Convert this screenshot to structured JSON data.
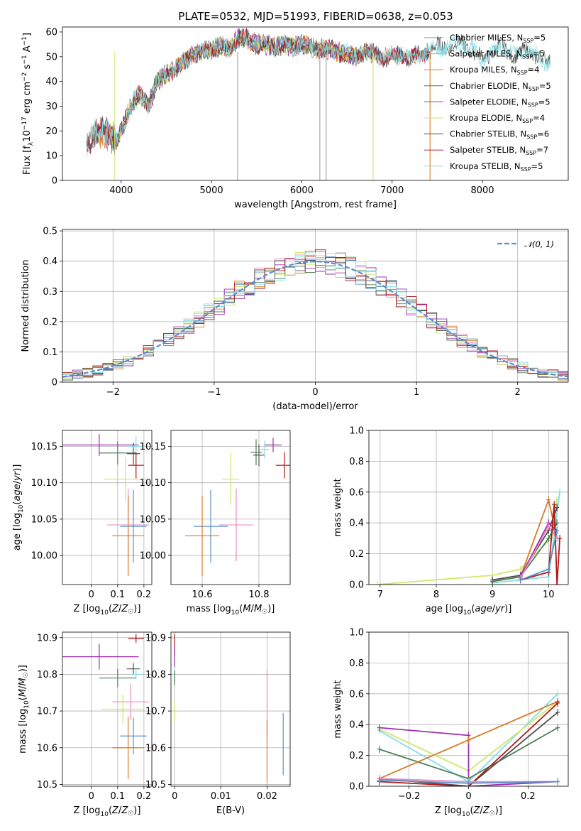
{
  "figure_title": "PLATE=0532, MJD=51993, FIBERID=0638, z=0.053",
  "colors": {
    "Chabrier MILES": "#5b93c9",
    "Salpeter MILES": "#e88ec2",
    "Kroupa MILES": "#d97a26",
    "Chabrier ELODIE": "#4f7f58",
    "Salpeter ELODIE": "#a02fb0",
    "Kroupa ELODIE": "#cfe76a",
    "Chabrier STELIB": "#505050",
    "Salpeter STELIB": "#b01818",
    "Kroupa STELIB": "#86dde5",
    "normal": "#5b8cd6"
  },
  "chart_data": [
    {
      "type": "line",
      "id": "spectrum",
      "title": "PLATE=0532, MJD=51993, FIBERID=0638, z=0.053",
      "xlabel": "wavelength [Angstrom, rest frame]",
      "ylabel": "Flux [f",
      "ylabel_full": "Flux [fλ10−17 erg cm−2 s−1 A−1]",
      "xlim": [
        3350,
        8950
      ],
      "ylim": [
        0,
        62
      ],
      "xticks": [
        4000,
        5000,
        6000,
        7000,
        8000
      ],
      "yticks": [
        0,
        10,
        20,
        30,
        40,
        50,
        60
      ],
      "grid": false,
      "legend_position": "top-right",
      "anchors_x": [
        3620,
        3700,
        3800,
        3900,
        3950,
        4000,
        4100,
        4200,
        4300,
        4400,
        4500,
        4600,
        4700,
        4800,
        4900,
        5000,
        5100,
        5200,
        5300,
        5400,
        5500,
        5600,
        5700,
        5800,
        5900,
        6000,
        6100,
        6200,
        6300,
        6400,
        6500,
        6600,
        6700,
        6800,
        6900,
        7000,
        7100,
        7200,
        7300,
        7400,
        7500,
        7600,
        7700,
        7800,
        7900,
        8000,
        8100,
        8200,
        8300,
        8400,
        8500,
        8600,
        8700,
        8800
      ],
      "anchors_y": [
        15,
        18,
        20,
        18,
        16,
        20,
        30,
        35,
        30,
        40,
        43,
        45,
        48,
        51,
        52,
        53,
        54,
        53,
        58,
        57,
        55,
        55,
        54,
        55,
        54,
        55,
        54,
        53,
        53,
        52,
        51,
        50,
        52,
        51,
        50,
        50,
        51,
        49,
        51,
        52,
        54,
        54,
        55,
        55,
        52,
        49,
        52,
        54,
        52,
        50,
        53,
        50,
        48,
        50
      ],
      "legend": [
        "Chabrier MILES, N",
        "Salpeter MILES, N",
        "Kroupa MILES, N",
        "Chabrier ELODIE, N",
        "Salpeter ELODIE, N",
        "Kroupa ELODIE, N",
        "Chabrier STELIB, N",
        "Salpeter STELIB, N",
        "Kroupa STELIB, N"
      ],
      "legend_sub": "SSP",
      "legend_values": [
        "=5",
        "=5",
        "=4",
        "=5",
        "=5",
        "=4",
        "=6",
        "=7",
        "=5"
      ],
      "series": [
        {
          "label": "Chabrier MILES",
          "xrange": [
            3620,
            7400
          ],
          "seed": 1
        },
        {
          "label": "Salpeter MILES",
          "xrange": [
            3620,
            7400
          ],
          "seed": 2
        },
        {
          "label": "Kroupa MILES",
          "xrange": [
            3620,
            7400
          ],
          "seed": 3
        },
        {
          "label": "Chabrier ELODIE",
          "xrange": [
            3900,
            6800
          ],
          "seed": 4
        },
        {
          "label": "Salpeter ELODIE",
          "xrange": [
            3900,
            6800
          ],
          "seed": 5
        },
        {
          "label": "Kroupa ELODIE",
          "xrange": [
            3900,
            6800
          ],
          "seed": 6
        },
        {
          "label": "Chabrier STELIB",
          "xrange": [
            3620,
            8750
          ],
          "seed": 7
        },
        {
          "label": "Salpeter STELIB",
          "xrange": [
            3620,
            7400
          ],
          "seed": 8
        },
        {
          "label": "Kroupa STELIB",
          "xrange": [
            3620,
            8750
          ],
          "seed": 9
        }
      ],
      "vlines": [
        {
          "x": 3930,
          "color": "#cfe76a"
        },
        {
          "x": 5290,
          "color": "#a0a0a0"
        },
        {
          "x": 6200,
          "color": "#a0a0a0"
        },
        {
          "x": 6270,
          "color": "#a0a0a0"
        },
        {
          "x": 6790,
          "color": "#cfe76a"
        },
        {
          "x": 7420,
          "color": "#d97a26"
        }
      ]
    },
    {
      "type": "histogram",
      "id": "residuals",
      "xlabel": "(data-model)/error",
      "ylabel": "Normed distribution",
      "xlim": [
        -2.5,
        2.5
      ],
      "ylim": [
        0,
        0.505
      ],
      "xticks": [
        -2,
        -1,
        0,
        1,
        2
      ],
      "yticks": [
        0.0,
        0.1,
        0.2,
        0.3,
        0.4,
        0.5
      ],
      "grid": true,
      "legend": [
        "𝒩(0, 1)"
      ],
      "legend_position": "top-right",
      "bin_width": 0.1,
      "curve": "normal(0,1)",
      "series": [
        {
          "label": "Chabrier MILES",
          "seed": 11
        },
        {
          "label": "Salpeter MILES",
          "seed": 12
        },
        {
          "label": "Kroupa MILES",
          "seed": 13
        },
        {
          "label": "Chabrier ELODIE",
          "seed": 14
        },
        {
          "label": "Salpeter ELODIE",
          "seed": 15
        },
        {
          "label": "Kroupa ELODIE",
          "seed": 16
        },
        {
          "label": "Chabrier STELIB",
          "seed": 17
        },
        {
          "label": "Salpeter STELIB",
          "seed": 18
        },
        {
          "label": "Kroupa STELIB",
          "seed": 19
        }
      ]
    },
    {
      "type": "scatter",
      "id": "age-vs-Z",
      "xlabel": "Z [log",
      "ylabel": "age  [log",
      "xlim": [
        -0.11,
        0.23
      ],
      "ylim": [
        9.96,
        10.172
      ],
      "xticks": [
        0.0,
        0.1,
        0.2
      ],
      "yticks": [
        10.0,
        10.05,
        10.1,
        10.15
      ],
      "grid": true,
      "points": [
        {
          "label": "Salpeter ELODIE",
          "x": 0.03,
          "y": 10.152,
          "xerr": 0.15,
          "yerr": 0.015
        },
        {
          "label": "Chabrier ELODIE",
          "x": 0.1,
          "y": 10.141,
          "xerr": 0.07,
          "yerr": 0.016
        },
        {
          "label": "Chabrier STELIB",
          "x": 0.16,
          "y": 10.14,
          "xerr": 0.025,
          "yerr": 0.015
        },
        {
          "label": "Kroupa STELIB",
          "x": 0.17,
          "y": 10.15,
          "xerr": 0.03,
          "yerr": 0.014
        },
        {
          "label": "Salpeter STELIB",
          "x": 0.17,
          "y": 10.124,
          "xerr": 0.03,
          "yerr": 0.018
        },
        {
          "label": "Kroupa ELODIE",
          "x": 0.13,
          "y": 10.105,
          "xerr": 0.08,
          "yerr": 0.03
        },
        {
          "label": "Salpeter MILES",
          "x": 0.14,
          "y": 10.042,
          "xerr": 0.08,
          "yerr": 0.05
        },
        {
          "label": "Chabrier MILES",
          "x": 0.16,
          "y": 10.04,
          "xerr": 0.05,
          "yerr": 0.05
        },
        {
          "label": "Kroupa MILES",
          "x": 0.14,
          "y": 10.027,
          "xerr": 0.06,
          "yerr": 0.055
        }
      ]
    },
    {
      "type": "scatter",
      "id": "age-vs-mass",
      "xlabel": "mass [log",
      "ylabel": "",
      "xlim": [
        10.49,
        10.91
      ],
      "ylim": [
        9.96,
        10.172
      ],
      "xticks": [
        10.6,
        10.8
      ],
      "yticks": [
        10.0,
        10.05,
        10.1,
        10.15
      ],
      "grid": true,
      "points": [
        {
          "label": "Salpeter ELODIE",
          "x": 10.85,
          "y": 10.152,
          "xerr": 0.03,
          "yerr": 0.01
        },
        {
          "label": "Chabrier ELODIE",
          "x": 10.79,
          "y": 10.142,
          "xerr": 0.02,
          "yerr": 0.018
        },
        {
          "label": "Chabrier STELIB",
          "x": 10.8,
          "y": 10.138,
          "xerr": 0.02,
          "yerr": 0.015
        },
        {
          "label": "Kroupa STELIB",
          "x": 10.82,
          "y": 10.146,
          "xerr": 0.015,
          "yerr": 0.012
        },
        {
          "label": "Salpeter STELIB",
          "x": 10.89,
          "y": 10.124,
          "xerr": 0.03,
          "yerr": 0.018
        },
        {
          "label": "Kroupa ELODIE",
          "x": 10.7,
          "y": 10.105,
          "xerr": 0.03,
          "yerr": 0.035
        },
        {
          "label": "Salpeter MILES",
          "x": 10.72,
          "y": 10.042,
          "xerr": 0.06,
          "yerr": 0.05
        },
        {
          "label": "Chabrier MILES",
          "x": 10.63,
          "y": 10.04,
          "xerr": 0.06,
          "yerr": 0.05
        },
        {
          "label": "Kroupa MILES",
          "x": 10.6,
          "y": 10.027,
          "xerr": 0.06,
          "yerr": 0.055
        }
      ]
    },
    {
      "type": "line",
      "id": "weights-vs-age",
      "xlabel": "age  [log",
      "ylabel": "mass weight",
      "xlim": [
        6.8,
        10.35
      ],
      "ylim": [
        0,
        1.0
      ],
      "xticks": [
        7,
        8,
        9,
        10
      ],
      "yticks": [
        0.0,
        0.2,
        0.4,
        0.6,
        0.8,
        1.0
      ],
      "grid": true,
      "series": [
        {
          "label": "Kroupa ELODIE",
          "x": [
            6.95,
            9.0,
            9.5,
            10.05,
            10.15
          ],
          "y": [
            0.0,
            0.06,
            0.1,
            0.3,
            0.55
          ]
        },
        {
          "label": "Kroupa MILES",
          "x": [
            9.0,
            9.5,
            10.0,
            10.15
          ],
          "y": [
            0.02,
            0.05,
            0.55,
            0.3
          ]
        },
        {
          "label": "Kroupa STELIB",
          "x": [
            9.0,
            9.5,
            10.0,
            10.2
          ],
          "y": [
            0.01,
            0.03,
            0.05,
            0.6
          ]
        },
        {
          "label": "Chabrier ELODIE",
          "x": [
            9.0,
            9.5,
            10.0,
            10.15
          ],
          "y": [
            0.02,
            0.05,
            0.3,
            0.4
          ]
        },
        {
          "label": "Chabrier STELIB",
          "x": [
            9.0,
            9.5,
            10.0,
            10.15
          ],
          "y": [
            0.03,
            0.06,
            0.35,
            0.5
          ]
        },
        {
          "label": "Salpeter ELODIE",
          "x": [
            9.5,
            10.0,
            10.15
          ],
          "y": [
            0.05,
            0.4,
            0.35
          ]
        },
        {
          "label": "Salpeter MILES",
          "x": [
            9.5,
            10.0,
            10.15
          ],
          "y": [
            0.04,
            0.38,
            0.3
          ]
        },
        {
          "label": "Salpeter STELIB",
          "x": [
            9.5,
            10.0,
            10.1,
            10.15,
            10.2
          ],
          "y": [
            0.03,
            0.08,
            0.52,
            0.0,
            0.3
          ]
        },
        {
          "label": "Chabrier MILES",
          "x": [
            9.5,
            10.0,
            10.15
          ],
          "y": [
            0.03,
            0.1,
            0.35
          ]
        }
      ]
    },
    {
      "type": "scatter",
      "id": "mass-vs-Z",
      "xlabel": "Z [log",
      "ylabel": "mass [log",
      "xlim": [
        -0.11,
        0.23
      ],
      "ylim": [
        10.495,
        10.915
      ],
      "xticks": [
        0.0,
        0.1,
        0.2
      ],
      "yticks": [
        10.5,
        10.6,
        10.7,
        10.8,
        10.9
      ],
      "grid": true,
      "points": [
        {
          "label": "Salpeter STELIB",
          "x": 0.17,
          "y": 10.898,
          "xerr": 0.03,
          "yerr": 0.012
        },
        {
          "label": "Salpeter ELODIE",
          "x": 0.03,
          "y": 10.848,
          "xerr": 0.15,
          "yerr": 0.035
        },
        {
          "label": "Chabrier STELIB",
          "x": 0.16,
          "y": 10.815,
          "xerr": 0.025,
          "yerr": 0.015
        },
        {
          "label": "Kroupa STELIB",
          "x": 0.17,
          "y": 10.8,
          "xerr": 0.02,
          "yerr": 0.012
        },
        {
          "label": "Chabrier ELODIE",
          "x": 0.1,
          "y": 10.79,
          "xerr": 0.07,
          "yerr": 0.025
        },
        {
          "label": "Salpeter MILES",
          "x": 0.15,
          "y": 10.725,
          "xerr": 0.07,
          "yerr": 0.05
        },
        {
          "label": "Kroupa ELODIE",
          "x": 0.12,
          "y": 10.705,
          "xerr": 0.08,
          "yerr": 0.04
        },
        {
          "label": "Chabrier MILES",
          "x": 0.16,
          "y": 10.632,
          "xerr": 0.05,
          "yerr": 0.05
        },
        {
          "label": "Kroupa MILES",
          "x": 0.14,
          "y": 10.6,
          "xerr": 0.06,
          "yerr": 0.085
        }
      ]
    },
    {
      "type": "scatter",
      "id": "mass-vs-EBV",
      "xlabel": "E(B-V)",
      "ylabel": "",
      "xlim": [
        -0.0008,
        0.025
      ],
      "ylim": [
        10.495,
        10.915
      ],
      "xticks": [
        0.0,
        0.01,
        0.02
      ],
      "yticks": [
        10.5,
        10.6,
        10.7,
        10.8,
        10.9
      ],
      "grid": true,
      "points": [
        {
          "label": "Salpeter STELIB",
          "x": 0.0,
          "y": 10.88,
          "xerr": 0.0,
          "yerr": 0.03
        },
        {
          "label": "Salpeter ELODIE",
          "x": 0.0,
          "y": 10.85,
          "xerr": 0.0,
          "yerr": 0.03
        },
        {
          "label": "Kroupa STELIB",
          "x": 0.0,
          "y": 10.8,
          "xerr": 0.0,
          "yerr": 0.02
        },
        {
          "label": "Chabrier ELODIE",
          "x": 0.0,
          "y": 10.79,
          "xerr": 0.0,
          "yerr": 0.02
        },
        {
          "label": "Kroupa ELODIE",
          "x": 0.0,
          "y": 10.7,
          "xerr": 0.0,
          "yerr": 0.03
        },
        {
          "label": "Salpeter MILES",
          "x": 0.02,
          "y": 10.72,
          "xerr": 0.0,
          "yerr": 0.09
        },
        {
          "label": "Kroupa MILES",
          "x": 0.02,
          "y": 10.59,
          "xerr": 0.0,
          "yerr": 0.085
        },
        {
          "label": "Chabrier MILES",
          "x": 0.0235,
          "y": 10.61,
          "xerr": 0.0,
          "yerr": 0.085
        }
      ]
    },
    {
      "type": "line",
      "id": "weights-vs-Z",
      "xlabel": "Z [log",
      "ylabel": "mass weight",
      "xlim": [
        -0.335,
        0.335
      ],
      "ylim": [
        0,
        1.0
      ],
      "xticks": [
        -0.2,
        0.0,
        0.2
      ],
      "yticks": [
        0.0,
        0.2,
        0.4,
        0.6,
        0.8,
        1.0
      ],
      "grid": true,
      "series": [
        {
          "label": "Kroupa STELIB",
          "x": [
            -0.3,
            0.0,
            0.3
          ],
          "y": [
            0.36,
            0.03,
            0.6
          ]
        },
        {
          "label": "Kroupa ELODIE",
          "x": [
            -0.3,
            0.0,
            0.3
          ],
          "y": [
            0.37,
            0.1,
            0.55
          ]
        },
        {
          "label": "Salpeter ELODIE",
          "x": [
            -0.3,
            0.0,
            0.0,
            0.3
          ],
          "y": [
            0.38,
            0.33,
            0.0,
            0.03
          ]
        },
        {
          "label": "Chabrier ELODIE",
          "x": [
            -0.3,
            0.0,
            0.3
          ],
          "y": [
            0.24,
            0.05,
            0.38
          ]
        },
        {
          "label": "Chabrier STELIB",
          "x": [
            -0.3,
            0.0,
            0.3
          ],
          "y": [
            0.05,
            0.0,
            0.48
          ]
        },
        {
          "label": "Kroupa MILES",
          "x": [
            -0.3,
            0.0,
            0.3
          ],
          "y": [
            0.05,
            0.3,
            0.55
          ]
        },
        {
          "label": "Salpeter STELIB",
          "x": [
            -0.3,
            0.0,
            0.3
          ],
          "y": [
            0.03,
            0.0,
            0.54
          ]
        },
        {
          "label": "Salpeter MILES",
          "x": [
            -0.3,
            0.0,
            0.3
          ],
          "y": [
            0.05,
            0.03,
            0.03
          ]
        },
        {
          "label": "Chabrier MILES",
          "x": [
            -0.3,
            0.0,
            0.3
          ],
          "y": [
            0.04,
            0.02,
            0.03
          ]
        }
      ]
    }
  ]
}
